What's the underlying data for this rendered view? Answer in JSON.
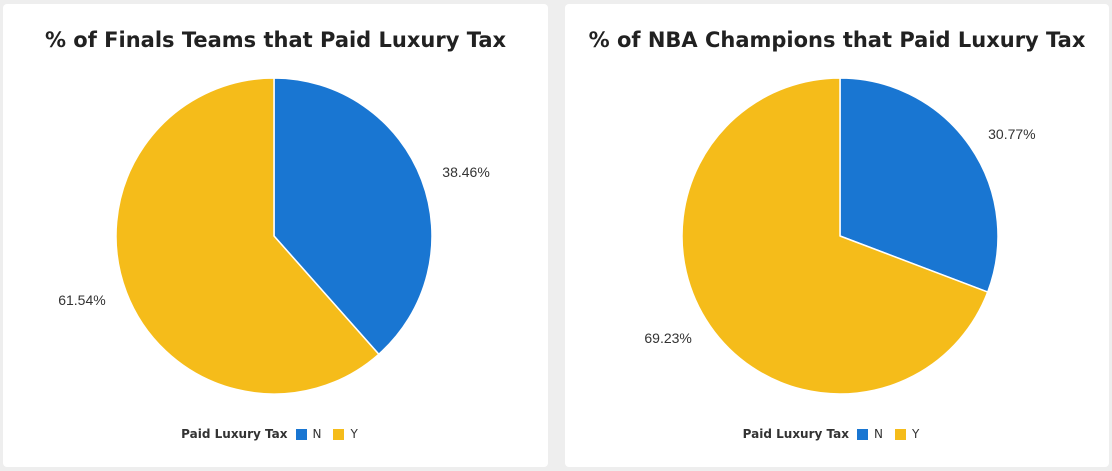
{
  "colors": {
    "N": "#1976d2",
    "Y": "#f5bc1a"
  },
  "chart_data": [
    {
      "type": "pie",
      "title": "% of Finals Teams that Paid Luxury Tax",
      "legend_title": "Paid Luxury Tax",
      "legend_position": "bottom",
      "slices": [
        {
          "category": "N",
          "value": 38.46,
          "label": "38.46%"
        },
        {
          "category": "Y",
          "value": 61.54,
          "label": "61.54%"
        }
      ]
    },
    {
      "type": "pie",
      "title": "% of NBA Champions that Paid Luxury Tax",
      "legend_title": "Paid Luxury Tax",
      "legend_position": "bottom",
      "slices": [
        {
          "category": "N",
          "value": 30.77,
          "label": "30.77%"
        },
        {
          "category": "Y",
          "value": 69.23,
          "label": "69.23%"
        }
      ]
    }
  ]
}
